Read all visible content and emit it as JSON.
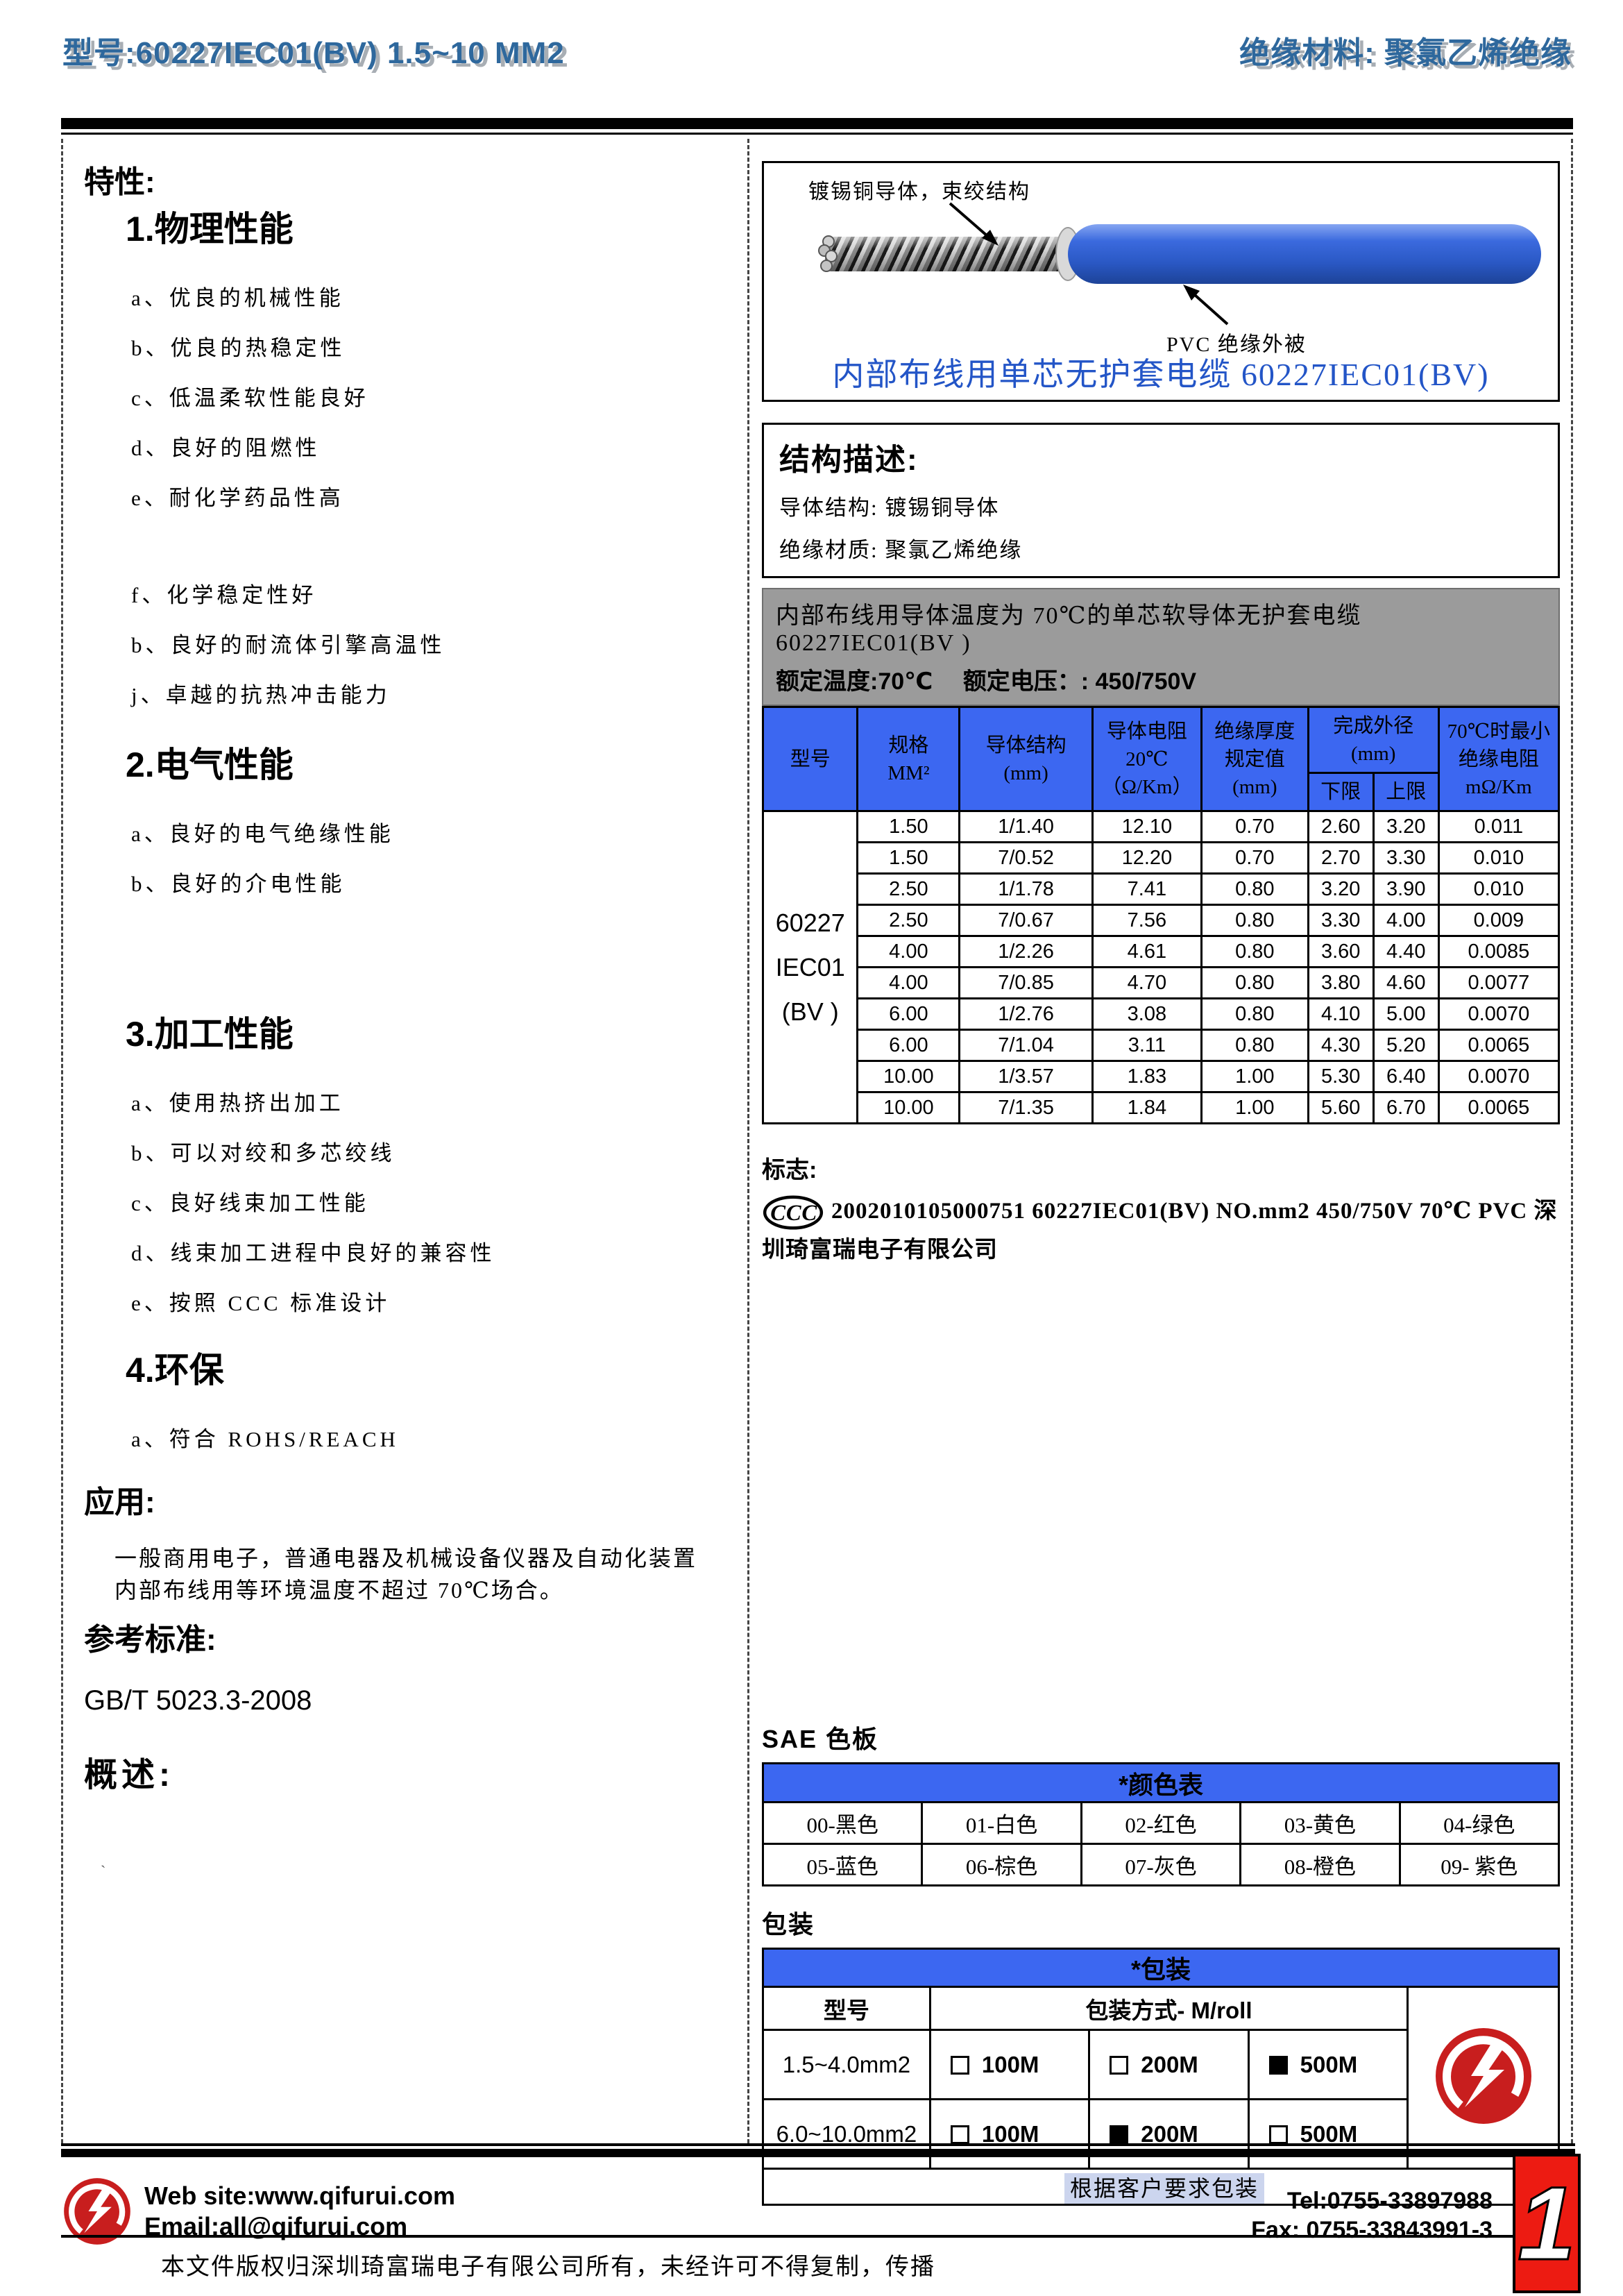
{
  "header": {
    "model_label": "型号:60227IEC01(BV) 1.5~10 MM2",
    "insulation_label": "绝缘材料: 聚氯乙烯绝缘"
  },
  "left": {
    "features_title": "特性:",
    "sections": [
      {
        "title": "1.物理性能",
        "items": [
          "a、优良的机械性能",
          "b、优良的热稳定性",
          "c、低温柔软性能良好",
          "d、良好的阻燃性",
          "e、耐化学药品性高",
          "f、化学稳定性好",
          "b、良好的耐流体引擎高温性",
          "j、卓越的抗热冲击能力"
        ]
      },
      {
        "title": "2.电气性能",
        "items": [
          "a、良好的电气绝缘性能",
          "b、良好的介电性能"
        ]
      },
      {
        "title": "3.加工性能",
        "items": [
          "a、使用热挤出加工",
          "b、可以对绞和多芯绞线",
          "c、良好线束加工性能",
          "d、线束加工进程中良好的兼容性",
          "e、按照 CCC 标准设计"
        ]
      },
      {
        "title": "4.环保",
        "items": [
          "a、符合 ROHS/REACH"
        ]
      }
    ],
    "application_title": "应用:",
    "application_text": "一般商用电子，普通电器及机械设备仪器及自动化装置内部布线用等环境温度不超过 70℃场合。",
    "reference_title": "参考标准:",
    "reference_value": "GB/T 5023.3-2008",
    "overview_title": "概述:",
    "overview_mark": "`"
  },
  "diagram": {
    "conductor_label": "镀锡铜导体，束绞结构",
    "jacket_label": "PVC 绝缘外被",
    "caption": "内部布线用单芯无护套电缆 60227IEC01(BV)"
  },
  "structure": {
    "title": "结构描述:",
    "lines": [
      "导体结构: 镀锡铜导体",
      "绝缘材质: 聚氯乙烯绝缘"
    ]
  },
  "banner": {
    "line1": "内部布线用导体温度为 70℃的单芯软导体无护套电缆　 60227IEC01(BV )",
    "line2": "额定温度:70℃　 额定电压：: 450/750V"
  },
  "spec_table": {
    "type": "table",
    "headers": {
      "model": "型号",
      "spec": "规格\nMM²",
      "structure": "导体结构\n(mm)",
      "resistance": "导体电阻\n20℃\n（Ω/Km）",
      "thickness": "绝缘厚度\n规定值\n(mm)",
      "od": "完成外径\n(mm)",
      "od_low": "下限",
      "od_high": "上限",
      "ir": "70℃时最小\n绝缘电阻\nmΩ/Km"
    },
    "model_value": "60227\nIEC01\n(BV )",
    "rows": [
      [
        "1.50",
        "1/1.40",
        "12.10",
        "0.70",
        "2.60",
        "3.20",
        "0.011"
      ],
      [
        "1.50",
        "7/0.52",
        "12.20",
        "0.70",
        "2.70",
        "3.30",
        "0.010"
      ],
      [
        "2.50",
        "1/1.78",
        "7.41",
        "0.80",
        "3.20",
        "3.90",
        "0.010"
      ],
      [
        "2.50",
        "7/0.67",
        "7.56",
        "0.80",
        "3.30",
        "4.00",
        "0.009"
      ],
      [
        "4.00",
        "1/2.26",
        "4.61",
        "0.80",
        "3.60",
        "4.40",
        "0.0085"
      ],
      [
        "4.00",
        "7/0.85",
        "4.70",
        "0.80",
        "3.80",
        "4.60",
        "0.0077"
      ],
      [
        "6.00",
        "1/2.76",
        "3.08",
        "0.80",
        "4.10",
        "5.00",
        "0.0070"
      ],
      [
        "6.00",
        "7/1.04",
        "3.11",
        "0.80",
        "4.30",
        "5.20",
        "0.0065"
      ],
      [
        "10.00",
        "1/3.57",
        "1.83",
        "1.00",
        "5.30",
        "6.40",
        "0.0070"
      ],
      [
        "10.00",
        "7/1.35",
        "1.84",
        "1.00",
        "5.60",
        "6.70",
        "0.0065"
      ]
    ]
  },
  "mark": {
    "title": "标志:",
    "ccc_icon": "ccc-certification-icon",
    "text": "2002010105000751 60227IEC01(BV) NO.mm2 450/750V 70℃  PVC  深圳琦富瑞电子有限公司"
  },
  "sae": {
    "title": "SAE 色板",
    "table_title": "*颜色表",
    "rows": [
      [
        "00-黑色",
        "01-白色",
        "02-红色",
        "03-黄色",
        "04-绿色"
      ],
      [
        "05-蓝色",
        "06-棕色",
        "07-灰色",
        "08-橙色",
        "09- 紫色"
      ]
    ]
  },
  "packaging": {
    "title": "包装",
    "table_title": "*包装",
    "col_model": "型号",
    "col_method": "包装方式- M/roll",
    "rows": [
      {
        "model": "1.5~4.0mm2",
        "options": [
          {
            "label": "100M",
            "checked": false
          },
          {
            "label": "200M",
            "checked": false
          },
          {
            "label": "500M",
            "checked": true
          }
        ]
      },
      {
        "model": "6.0~10.0mm2",
        "options": [
          {
            "label": "100M",
            "checked": false
          },
          {
            "label": "200M",
            "checked": true
          },
          {
            "label": "500M",
            "checked": false
          }
        ]
      }
    ],
    "note": "根据客户要求包装"
  },
  "footer": {
    "website": "Web site:www.qifurui.com",
    "email": "Email:all@qifurui.com",
    "tel": "Tel:0755-33897988",
    "fax": "Fax: 0755-33843991-3",
    "copyright": "本文件版权归深圳琦富瑞电子有限公司所有，未经许可不得复制，传播",
    "page_number": "1"
  },
  "colors": {
    "header_text_blue": "#2e689d",
    "title_blue": "#2355c7",
    "table_header_blue": "#3c67f1",
    "banner_gray": "#9b9b9b",
    "page_number_red": "#ed1b12",
    "logo_red": "#c81e1e",
    "note_highlight": "#ccd5ee",
    "cable_jacket_blue": "#2a58c4"
  }
}
